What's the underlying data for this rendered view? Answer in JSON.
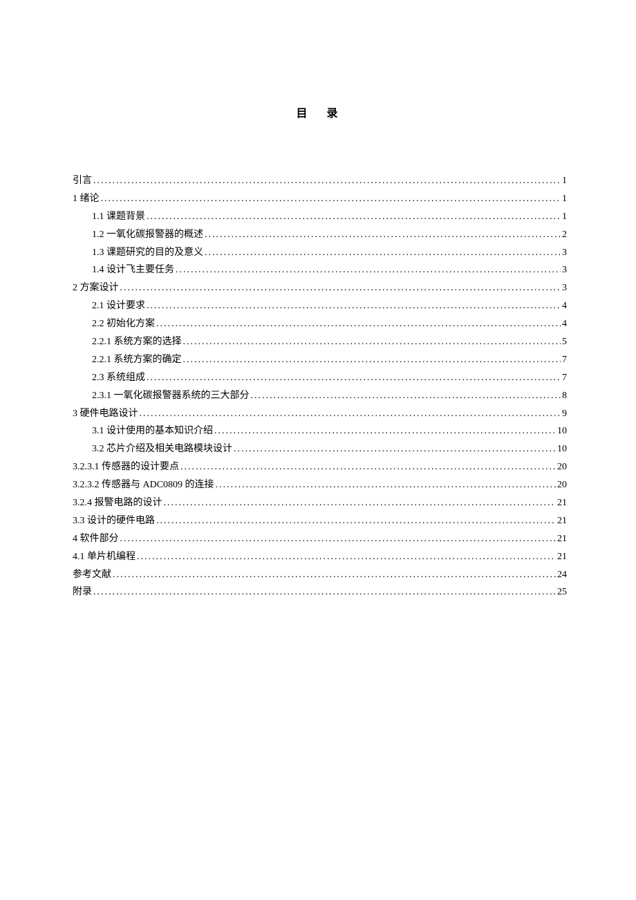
{
  "title": "目录",
  "text_color": "#000000",
  "background_color": "#ffffff",
  "font_family": "SimSun",
  "base_font_size": 14,
  "title_font_size": 16,
  "entries": [
    {
      "label": "引言",
      "page": "1",
      "indent": 0
    },
    {
      "label": "1 绪论",
      "page": "1",
      "indent": 0
    },
    {
      "label": "1.1  课题背景",
      "page": "1",
      "indent": 1
    },
    {
      "label": "1.2  一氧化碳报警器的概述",
      "page": "2",
      "indent": 1
    },
    {
      "label": "1.3  课题研究的目的及意义",
      "page": "3",
      "indent": 1
    },
    {
      "label": "1.4  设计飞主要任务",
      "page": "3",
      "indent": 1
    },
    {
      "label": "2  方案设计",
      "page": "3",
      "indent": 0
    },
    {
      "label": "2.1  设计要求",
      "page": "4",
      "indent": 1
    },
    {
      "label": "2.2  初始化方案",
      "page": "4",
      "indent": 1
    },
    {
      "label": "2.2.1  系统方案的选择",
      "page": "5",
      "indent": 1
    },
    {
      "label": "2.2.1  系统方案的确定",
      "page": "7",
      "indent": 1
    },
    {
      "label": "2.3  系统组成",
      "page": "7",
      "indent": 1
    },
    {
      "label": "2.3.1  一氧化碳报警器系统的三大部分",
      "page": "8",
      "indent": 1
    },
    {
      "label": "3  硬件电路设计",
      "page": "9",
      "indent": 0
    },
    {
      "label": "3.1  设计使用的基本知识介绍",
      "page": "10",
      "indent": 1
    },
    {
      "label": "3.2  芯片介绍及相关电路模块设计",
      "page": "10",
      "indent": 1
    },
    {
      "label": "3.2.3.1  传感器的设计要点",
      "page": "20",
      "indent": 0
    },
    {
      "label": "3.2.3.2  传感器与 ADC0809 的连接",
      "page": "20",
      "indent": 0
    },
    {
      "label": "3.2.4  报警电路的设计",
      "page": "21",
      "indent": 0
    },
    {
      "label": "3.3  设计的硬件电路",
      "page": "21",
      "indent": 0
    },
    {
      "label": "4  软件部分",
      "page": "21",
      "indent": 0
    },
    {
      "label": "4.1 单片机编程",
      "page": "21",
      "indent": 0
    },
    {
      "label": "参考文献",
      "page": "24",
      "indent": 0
    },
    {
      "label": "附录",
      "page": "25",
      "indent": 0
    }
  ]
}
